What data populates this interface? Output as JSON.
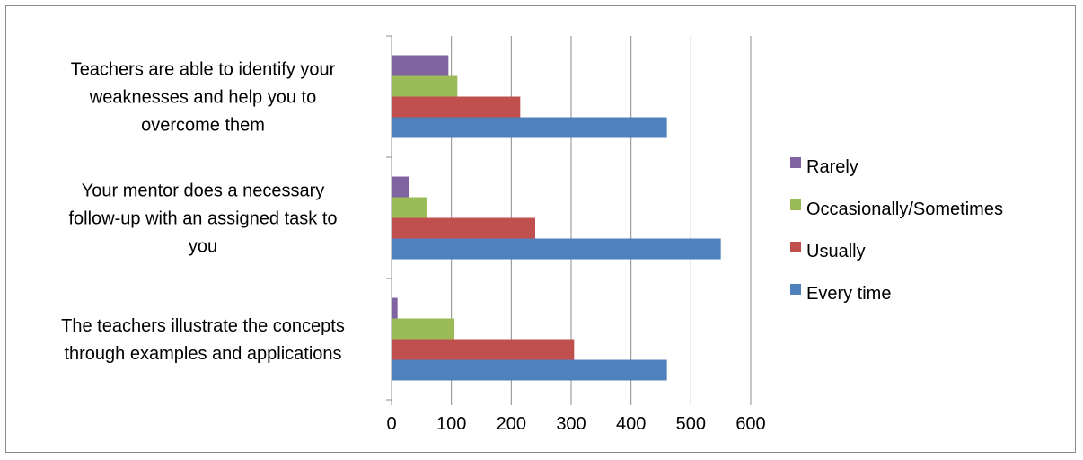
{
  "chart_data": {
    "type": "bar",
    "orientation": "horizontal",
    "categories": [
      [
        "The teachers illustrate the concepts",
        "through examples and applications"
      ],
      [
        "Your mentor does a necessary",
        "follow-up with an assigned task to",
        "you"
      ],
      [
        "Teachers are able to identify your",
        "weaknesses and help you to",
        "overcome them"
      ]
    ],
    "series": [
      {
        "name": "Every time",
        "color": "#4f81bd",
        "values": [
          460,
          550,
          460
        ]
      },
      {
        "name": "Usually",
        "color": "#c0504d",
        "values": [
          305,
          240,
          215
        ]
      },
      {
        "name": "Occasionally/Sometimes",
        "color": "#9bbb59",
        "values": [
          105,
          60,
          110
        ]
      },
      {
        "name": "Rarely",
        "color": "#8064a2",
        "values": [
          10,
          30,
          95
        ]
      }
    ],
    "legend_order": [
      "Rarely",
      "Occasionally/Sometimes",
      "Usually",
      "Every time"
    ],
    "xlim": [
      0,
      600
    ],
    "xticks": [
      0,
      100,
      200,
      300,
      400,
      500,
      600
    ],
    "grid": "vertical",
    "legend_position": "right",
    "title": "",
    "xlabel": "",
    "ylabel": ""
  }
}
